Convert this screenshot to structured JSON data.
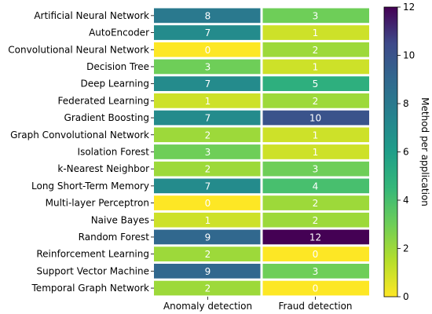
{
  "chart_data": {
    "type": "heatmap",
    "rows": [
      "Artificial Neural Network",
      "AutoEncoder",
      "Convolutional Neural Network",
      "Decision Tree",
      "Deep Learning",
      "Federated Learning",
      "Gradient Boosting",
      "Graph Convolutional Network",
      "Isolation Forest",
      "k-Nearest Neighbor",
      "Long Short-Term Memory",
      "Multi-layer Perceptron",
      "Naive Bayes",
      "Random Forest",
      "Reinforcement Learning",
      "Support Vector Machine",
      "Temporal Graph Network"
    ],
    "columns": [
      "Anomaly detection",
      "Fraud detection"
    ],
    "values": [
      [
        8,
        3
      ],
      [
        7,
        1
      ],
      [
        0,
        2
      ],
      [
        3,
        1
      ],
      [
        7,
        5
      ],
      [
        1,
        2
      ],
      [
        7,
        10
      ],
      [
        2,
        1
      ],
      [
        3,
        1
      ],
      [
        2,
        3
      ],
      [
        7,
        4
      ],
      [
        0,
        2
      ],
      [
        1,
        2
      ],
      [
        9,
        12
      ],
      [
        2,
        0
      ],
      [
        9,
        3
      ],
      [
        2,
        0
      ]
    ],
    "colorbar": {
      "label": "Method per application",
      "range": [
        0,
        12
      ],
      "ticks": [
        0,
        2,
        4,
        6,
        8,
        10,
        12
      ],
      "colormap": "viridis_r"
    },
    "annotations": "cell values shown in each cell"
  }
}
